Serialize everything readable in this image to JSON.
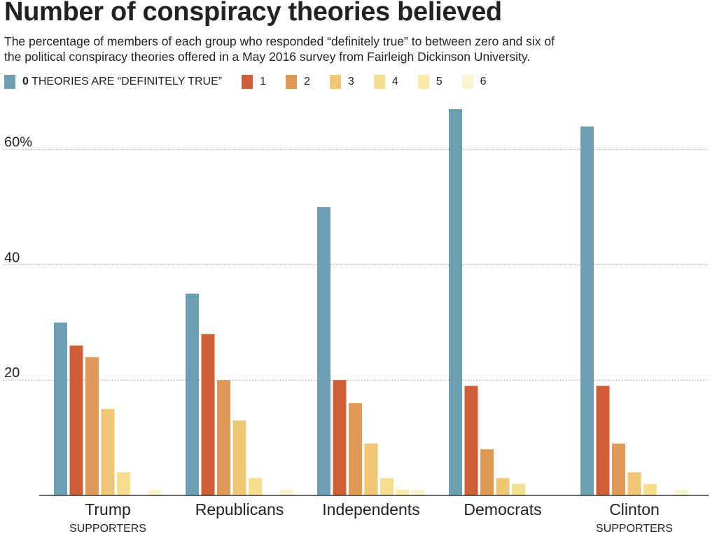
{
  "chart_data": {
    "type": "bar",
    "title": "Number of conspiracy theories believed",
    "subtitle_line1": "The percentage of members of each group who responded “definitely true” to between zero and six of",
    "subtitle_line2": "the political conspiracy theories offered in a May 2016 survey from Fairleigh Dickinson University.",
    "legend_placement": "top-left",
    "grid": true,
    "ylim": [
      0,
      67
    ],
    "yticks": [
      {
        "value": 20,
        "label": "20"
      },
      {
        "value": 40,
        "label": "40"
      },
      {
        "value": 60,
        "label": "60%"
      }
    ],
    "categories": [
      {
        "main": "Trump",
        "sub": "SUPPORTERS"
      },
      {
        "main": "Republicans",
        "sub": ""
      },
      {
        "main": "Independents",
        "sub": ""
      },
      {
        "main": "Democrats",
        "sub": ""
      },
      {
        "main": "Clinton",
        "sub": "SUPPORTERS"
      }
    ],
    "series": [
      {
        "name": "0 THEORIES ARE “DEFINITELY TRUE”",
        "name_bold": "0",
        "name_rest": " THEORIES ARE “DEFINITELY TRUE”",
        "color": "#6d9fb4",
        "values": [
          30,
          35,
          50,
          67,
          64
        ]
      },
      {
        "name": "1",
        "name_bold": "",
        "name_rest": "1",
        "color": "#cf5e37",
        "values": [
          26,
          28,
          20,
          19,
          19
        ]
      },
      {
        "name": "2",
        "name_bold": "",
        "name_rest": "2",
        "color": "#de9a56",
        "values": [
          24,
          20,
          16,
          8,
          9
        ]
      },
      {
        "name": "3",
        "name_bold": "",
        "name_rest": "3",
        "color": "#eec675",
        "values": [
          15,
          13,
          9,
          3,
          4
        ]
      },
      {
        "name": "4",
        "name_bold": "",
        "name_rest": "4",
        "color": "#f5dc8e",
        "values": [
          4,
          3,
          3,
          2,
          2
        ]
      },
      {
        "name": "5",
        "name_bold": "",
        "name_rest": "5",
        "color": "#f9eaaa",
        "values": [
          0,
          0,
          1,
          0,
          0
        ]
      },
      {
        "name": "6",
        "name_bold": "",
        "name_rest": "6",
        "color": "#fcf3cf",
        "values": [
          1,
          1,
          1,
          0,
          1
        ]
      }
    ]
  }
}
